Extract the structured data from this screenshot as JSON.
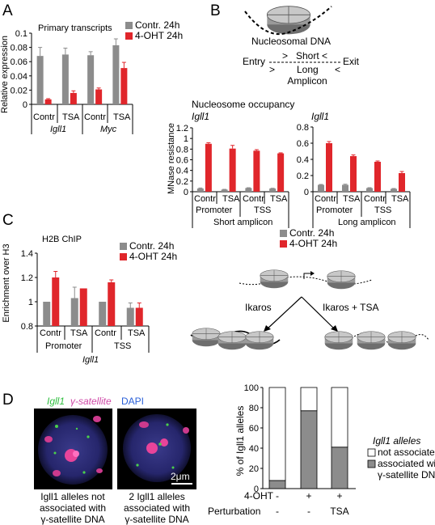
{
  "panels": {
    "A": {
      "label": "A",
      "title": "Primary transcripts",
      "ylabel": "Relative expression",
      "legend": [
        "Contr. 24h",
        "4-OHT 24h"
      ],
      "groups": [
        {
          "x1": [
            "Contr",
            "TSA"
          ],
          "x2": "Igll1"
        },
        {
          "x1": [
            "Contr",
            "TSA"
          ],
          "x2": "Myc"
        }
      ]
    },
    "B": {
      "label": "B",
      "nucleosome_label": "Nucleosomal DNA",
      "entry": "Entry",
      "exit": "Exit",
      "short": "Short",
      "long": "Long",
      "amplicon": "Amplicon",
      "gt": ">",
      "lt": "<",
      "occupancy_title": "Nucleosome occupancy",
      "gene": "Igll1",
      "ylabel": "MNase resistance",
      "left_x": [
        "Contr",
        "TSA",
        "Contr",
        "TSA"
      ],
      "left_x2": [
        "Promoter",
        "TSS"
      ],
      "left_x3": "Short amplicon",
      "right_x": [
        "Contr",
        "TSA",
        "Contr",
        "TSA"
      ],
      "right_x2": [
        "Promoter",
        "TSS"
      ],
      "right_x3": "Long amplicon",
      "legend": [
        "Contr. 24h",
        "4-OHT 24h"
      ]
    },
    "C": {
      "label": "C",
      "title": "H2B ChIP",
      "ylabel": "Enrichment over H3",
      "legend": [
        "Contr. 24h",
        "4-OHT 24h"
      ],
      "x1": [
        "Contr",
        "TSA",
        "Contr",
        "TSA"
      ],
      "x2": [
        "Promoter",
        "TSS"
      ],
      "x3": "Igll1",
      "ikaros": "Ikaros",
      "ikaros_tsa": "Ikaros + TSA"
    },
    "D": {
      "label": "D",
      "stain_green": "Igll1",
      "stain_magenta": "γ-satellite",
      "stain_blue": "DAPI",
      "scalebar": "2μm",
      "cap_left": [
        "Igll1 alleles not",
        "associated with",
        "γ-satellite DNA"
      ],
      "cap_right": [
        "2 Igll1 alleles",
        "associated with",
        "γ-satellite DNA"
      ],
      "ylabel": "% of Igll1 alleles",
      "row1_label": "4-OHT",
      "row2_label": "Perturbation",
      "row1": [
        "-",
        "+",
        "+"
      ],
      "row2": [
        "-",
        "-",
        "TSA"
      ],
      "legend_title": "Igll1 alleles",
      "legend": [
        "not associated",
        "associated with",
        "γ-satellite DNA"
      ]
    }
  },
  "colors": {
    "control": "#8c8c8c",
    "ohT": "#e0262b",
    "associated": "#8c8c8c",
    "not_associated": "#ffffff"
  },
  "chart_data": [
    {
      "type": "bar",
      "panel": "A",
      "title": "Primary transcripts",
      "ylabel": "Relative expression",
      "ylim": [
        0,
        0.1
      ],
      "yticks": [
        0,
        0.02,
        0.04,
        0.06,
        0.08,
        0.1
      ],
      "categories": [
        "Igll1 Contr",
        "Igll1 TSA",
        "Myc Contr",
        "Myc TSA"
      ],
      "series": [
        {
          "name": "Contr. 24h",
          "values": [
            0.068,
            0.07,
            0.069,
            0.083
          ],
          "err": [
            0.012,
            0.009,
            0.005,
            0.009
          ]
        },
        {
          "name": "4-OHT 24h",
          "values": [
            0.007,
            0.016,
            0.021,
            0.051
          ],
          "err": [
            0.001,
            0.003,
            0.002,
            0.008
          ]
        }
      ]
    },
    {
      "type": "bar",
      "panel": "B-short",
      "title": "Igll1",
      "ylabel": "MNase resistance",
      "ylim": [
        0,
        1.2
      ],
      "yticks": [
        0,
        0.2,
        0.4,
        0.6,
        0.8,
        1,
        1.2
      ],
      "categories": [
        "Promoter Contr",
        "Promoter TSA",
        "TSS Contr",
        "TSS TSA"
      ],
      "series": [
        {
          "name": "Contr. 24h",
          "values": [
            0.06,
            0.04,
            0.07,
            0.06
          ],
          "err": [
            0.01,
            0.005,
            0.005,
            0.005
          ]
        },
        {
          "name": "4-OHT 24h",
          "values": [
            0.9,
            0.81,
            0.77,
            0.72
          ],
          "err": [
            0.02,
            0.06,
            0.02,
            0.01
          ]
        }
      ]
    },
    {
      "type": "bar",
      "panel": "B-long",
      "title": "Igll1",
      "ylim": [
        0,
        0.8
      ],
      "yticks": [
        0,
        0.2,
        0.4,
        0.6,
        0.8
      ],
      "categories": [
        "Promoter Contr",
        "Promoter TSA",
        "TSS Contr",
        "TSS TSA"
      ],
      "series": [
        {
          "name": "Contr. 24h",
          "values": [
            0.085,
            0.085,
            0.045,
            0.035
          ],
          "err": [
            0.005,
            0.008,
            0.005,
            0.005
          ]
        },
        {
          "name": "4-OHT 24h",
          "values": [
            0.6,
            0.44,
            0.37,
            0.23
          ],
          "err": [
            0.02,
            0.015,
            0.01,
            0.02
          ]
        }
      ]
    },
    {
      "type": "bar",
      "panel": "C",
      "title": "H2B ChIP",
      "ylabel": "Enrichment over H3",
      "ylim": [
        0.8,
        1.4
      ],
      "yticks": [
        0.8,
        1,
        1.2,
        1.4
      ],
      "categories": [
        "Promoter Contr",
        "Promoter TSA",
        "TSS Contr",
        "TSS TSA"
      ],
      "series": [
        {
          "name": "Contr. 24h",
          "values": [
            1.0,
            1.03,
            1.0,
            0.95
          ],
          "err": [
            0,
            0.09,
            0,
            0.04
          ]
        },
        {
          "name": "4-OHT 24h",
          "values": [
            1.2,
            1.11,
            1.16,
            0.95
          ],
          "err": [
            0.05,
            0,
            0.02,
            0.04
          ]
        }
      ]
    },
    {
      "type": "bar",
      "panel": "D",
      "stacked": true,
      "ylabel": "% of Igll1 alleles",
      "ylim": [
        0,
        100
      ],
      "yticks": [
        0,
        20,
        40,
        60,
        80,
        100
      ],
      "categories": [
        "- / -",
        "+ / -",
        "+ / TSA"
      ],
      "series": [
        {
          "name": "associated with γ-satellite DNA",
          "values": [
            8,
            77,
            41
          ]
        },
        {
          "name": "not associated",
          "values": [
            92,
            23,
            59
          ]
        }
      ]
    }
  ]
}
